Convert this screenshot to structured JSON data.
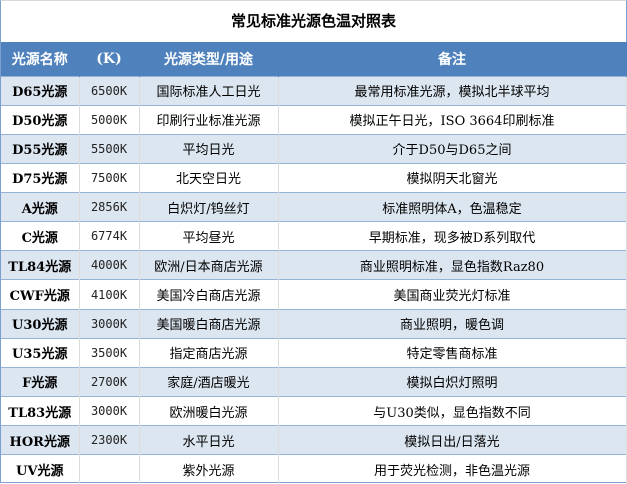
{
  "title": "常见标准光源色温对照表",
  "headers": [
    "光源名称",
    "(K)",
    "光源类型/用途",
    "备注"
  ],
  "rows": [
    [
      "D65光源",
      "6500K",
      "国际标准人工日光",
      "最常用标准光源，模拟北半球平均"
    ],
    [
      "D50光源",
      "5000K",
      "印刷行业标准光源",
      "模拟正午日光，ISO 3664印刷标准"
    ],
    [
      "D55光源",
      "5500K",
      "平均日光",
      "介于D50与D65之间"
    ],
    [
      "D75光源",
      "7500K",
      "北天空日光",
      "模拟阴天北窗光"
    ],
    [
      "A光源",
      "2856K",
      "白炽灯/钨丝灯",
      "标准照明体A，色温稳定"
    ],
    [
      "C光源",
      "6774K",
      "平均昼光",
      "早期标准，现多被D系列取代"
    ],
    [
      "TL84光源",
      "4000K",
      "欧洲/日本商店光源",
      "商业照明标准，显色指数Raz80"
    ],
    [
      "CWF光源",
      "4100K",
      "美国冷白商店光源",
      "美国商业荧光灯标准"
    ],
    [
      "U30光源",
      "3000K",
      "美国暖白商店光源",
      "商业照明，暖色调"
    ],
    [
      "U35光源",
      "3500K",
      "指定商店光源",
      "特定零售商标准"
    ],
    [
      "F光源",
      "2700K",
      "家庭/酒店暖光",
      "模拟白炽灯照明"
    ],
    [
      "TL83光源",
      "3000K",
      "欧洲暖白光源",
      "与U30类似，显色指数不同"
    ],
    [
      "HOR光源",
      "2300K",
      "水平日光",
      "模拟日出/日落光"
    ],
    [
      "UV光源",
      "",
      "紫外光源",
      "用于荧光检测，非色温光源"
    ]
  ],
  "colors": {
    "header_bg": "#4f81bd",
    "stripe": "#dce6f1"
  }
}
